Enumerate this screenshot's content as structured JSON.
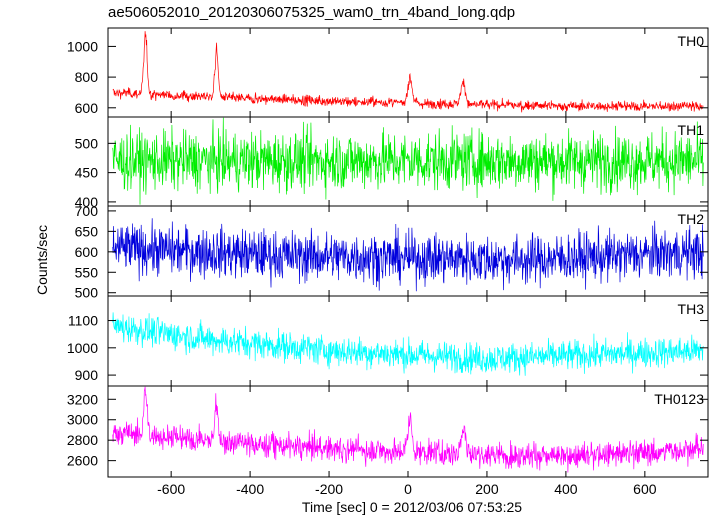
{
  "chart_data": {
    "type": "line",
    "title": "ae506052010_20120306075325_wam0_trn_4band_long.qdp",
    "xlabel": "Time [sec] 0 = 2012/03/06 07:53:25",
    "ylabel": "Counts/sec",
    "xlim": [
      -760,
      760
    ],
    "xticks": [
      -600,
      -400,
      -200,
      0,
      200,
      400,
      600
    ],
    "panels": [
      {
        "name": "TH0",
        "color": "#ff0000",
        "ylim": [
          540,
          1120
        ],
        "yticks": [
          600,
          800,
          1000
        ],
        "baseline": [
          [
            -750,
            700
          ],
          [
            -400,
            660
          ],
          [
            0,
            630
          ],
          [
            400,
            610
          ],
          [
            750,
            610
          ]
        ],
        "noise": 30,
        "peaks": [
          [
            -665,
            1120,
            6
          ],
          [
            -485,
            1010,
            6
          ],
          [
            5,
            820,
            8
          ],
          [
            140,
            790,
            8
          ]
        ]
      },
      {
        "name": "TH1",
        "color": "#00ee00",
        "ylim": [
          393,
          545
        ],
        "yticks": [
          400,
          450,
          500
        ],
        "baseline": [
          [
            -750,
            470
          ],
          [
            750,
            470
          ]
        ],
        "noise": 45,
        "peaks": []
      },
      {
        "name": "TH2",
        "color": "#0000dd",
        "ylim": [
          492,
          712
        ],
        "yticks": [
          500,
          550,
          600,
          650,
          700
        ],
        "baseline": [
          [
            -750,
            610
          ],
          [
            -300,
            590
          ],
          [
            300,
            580
          ],
          [
            750,
            600
          ]
        ],
        "noise": 55,
        "peaks": []
      },
      {
        "name": "TH3",
        "color": "#00ffff",
        "ylim": [
          860,
          1190
        ],
        "yticks": [
          900,
          1000,
          1100
        ],
        "baseline": [
          [
            -750,
            1080
          ],
          [
            -500,
            1030
          ],
          [
            -200,
            990
          ],
          [
            200,
            960
          ],
          [
            750,
            990
          ]
        ],
        "noise": 50,
        "peaks": []
      },
      {
        "name": "TH0123",
        "color": "#ff00ff",
        "ylim": [
          2440,
          3330
        ],
        "yticks": [
          2600,
          2800,
          3000,
          3200
        ],
        "baseline": [
          [
            -750,
            2880
          ],
          [
            -400,
            2760
          ],
          [
            0,
            2680
          ],
          [
            400,
            2640
          ],
          [
            750,
            2710
          ]
        ],
        "noise": 110,
        "peaks": [
          [
            -665,
            3330,
            6
          ],
          [
            -485,
            3210,
            6
          ],
          [
            5,
            3040,
            8
          ],
          [
            140,
            2960,
            8
          ]
        ]
      }
    ]
  }
}
